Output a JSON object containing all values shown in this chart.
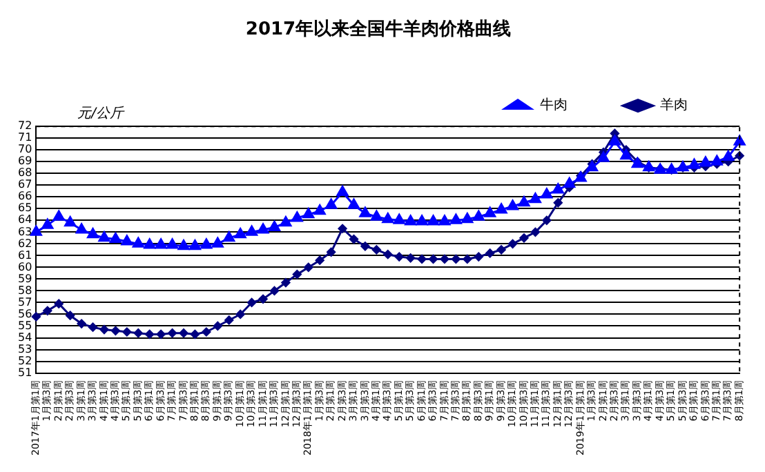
{
  "chart_data": {
    "type": "line",
    "title": "2017年以来全国牛羊肉价格曲线",
    "ylabel": "元/公斤",
    "categories": [
      "2017年1月第1周",
      "1月第3周",
      "2月第1周",
      "2月第3周",
      "3月第1周",
      "3月第3周",
      "4月第1周",
      "4月第3周",
      "5月第1周",
      "5月第3周",
      "6月第1周",
      "6月第3周",
      "7月第1周",
      "7月第3周",
      "8月第1周",
      "8月第3周",
      "9月第1周",
      "9月第3周",
      "10月第1周",
      "10月第3周",
      "11月第1周",
      "11月第3周",
      "12月第1周",
      "12月第3周",
      "2018年1月第1周",
      "1月第3周",
      "2月第1周",
      "2月第3周",
      "3月第1周",
      "3月第3周",
      "4月第1周",
      "4月第3周",
      "5月第1周",
      "5月第3周",
      "6月第1周",
      "6月第3周",
      "7月第1周",
      "7月第3周",
      "8月第1周",
      "8月第3周",
      "9月第1周",
      "9月第3周",
      "10月第1周",
      "10月第3周",
      "11月第1周",
      "11月第3周",
      "12月第1周",
      "12月第3周",
      "2019年1月第1周",
      "1月第3周",
      "2月第1周",
      "2月第3周",
      "3月第1周",
      "3月第3周",
      "4月第1周",
      "4月第3周",
      "5月第1周",
      "5月第3周",
      "6月第1周",
      "6月第3周",
      "7月第1周",
      "7月第3周",
      "8月第1周"
    ],
    "series": [
      {
        "name": "牛肉",
        "color": "#0000ff",
        "marker": "triangle",
        "values": [
          63.0,
          63.6,
          64.3,
          63.8,
          63.2,
          62.8,
          62.5,
          62.4,
          62.2,
          62.0,
          61.9,
          61.9,
          61.9,
          61.8,
          61.8,
          61.9,
          62.0,
          62.5,
          62.8,
          63.0,
          63.2,
          63.4,
          63.8,
          64.2,
          64.5,
          64.8,
          65.3,
          66.4,
          65.3,
          64.6,
          64.3,
          64.1,
          64.0,
          63.9,
          63.9,
          63.9,
          63.9,
          64.0,
          64.1,
          64.3,
          64.6,
          64.9,
          65.2,
          65.5,
          65.8,
          66.2,
          66.6,
          67.1,
          67.6,
          68.5,
          69.3,
          70.7,
          69.5,
          68.8,
          68.5,
          68.3,
          68.3,
          68.5,
          68.7,
          68.9,
          69.0,
          69.4,
          70.7
        ]
      },
      {
        "name": "羊肉",
        "color": "#000080",
        "marker": "diamond",
        "values": [
          55.8,
          56.3,
          56.9,
          55.9,
          55.2,
          54.9,
          54.7,
          54.6,
          54.5,
          54.4,
          54.3,
          54.3,
          54.4,
          54.4,
          54.3,
          54.5,
          55.0,
          55.5,
          56.0,
          57.0,
          57.3,
          58.0,
          58.7,
          59.4,
          60.0,
          60.6,
          61.3,
          63.3,
          62.4,
          61.8,
          61.5,
          61.1,
          60.9,
          60.8,
          60.7,
          60.7,
          60.7,
          60.7,
          60.7,
          60.9,
          61.2,
          61.5,
          62.0,
          62.5,
          63.0,
          64.0,
          65.5,
          66.8,
          67.8,
          68.8,
          69.8,
          71.4,
          70.0,
          69.0,
          68.5,
          68.4,
          68.3,
          68.5,
          68.5,
          68.6,
          68.8,
          69.0,
          69.5
        ]
      }
    ],
    "ylim": [
      51,
      72
    ],
    "yticks": [
      51,
      52,
      53,
      54,
      55,
      56,
      57,
      58,
      59,
      60,
      61,
      62,
      63,
      64,
      65,
      66,
      67,
      68,
      69,
      70,
      71,
      72
    ],
    "grid": "y",
    "legend": "top right",
    "line_style": "solid"
  }
}
